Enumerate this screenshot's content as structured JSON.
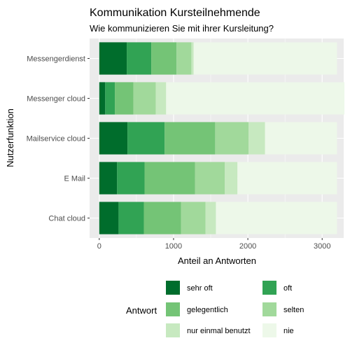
{
  "chart_data": {
    "type": "bar",
    "orientation": "horizontal",
    "stacked": true,
    "title": "Kommunikation Kursteilnehmende",
    "subtitle": "Wie kommunizieren Sie mit ihrer Kursleitung?",
    "xlabel": "Anteil an Antworten",
    "ylabel": "Nutzerfunktion",
    "xlim": [
      -130,
      3290
    ],
    "xticks": [
      0,
      1000,
      2000,
      3000
    ],
    "tick_labels": [
      "0",
      "1000",
      "2000",
      "3000"
    ],
    "grid": true,
    "legend_position": "bottom",
    "legend_title": "Antwort",
    "categories": [
      "Messengerdienst",
      "Messenger cloud",
      "Mailservice cloud",
      "E Mail",
      "Chat cloud"
    ],
    "series": [
      {
        "name": "sehr oft",
        "color": "#006d2c",
        "values": [
          370,
          80,
          380,
          240,
          260
        ]
      },
      {
        "name": "oft",
        "color": "#31a354",
        "values": [
          330,
          130,
          500,
          370,
          340
        ]
      },
      {
        "name": "gelegentlich",
        "color": "#74c476",
        "values": [
          340,
          250,
          680,
          680,
          500
        ]
      },
      {
        "name": "selten",
        "color": "#a1d99b",
        "values": [
          200,
          300,
          450,
          400,
          330
        ]
      },
      {
        "name": "nur einmal benutzt",
        "color": "#c7e9c0",
        "values": [
          30,
          140,
          220,
          170,
          140
        ]
      },
      {
        "name": "nie",
        "color": "#edf8e9",
        "values": [
          1930,
          2400,
          970,
          1340,
          1630
        ]
      }
    ]
  }
}
